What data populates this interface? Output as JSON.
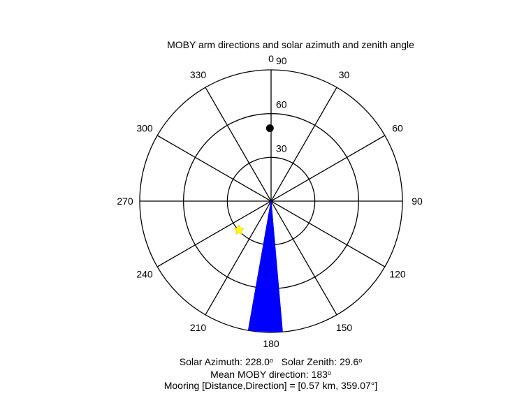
{
  "chart_data": {
    "type": "polar",
    "title": "MOBY arm directions and solar azimuth and zenith angle",
    "angular_axis": {
      "direction": "clockwise",
      "zero_location": "top",
      "tick_labels": [
        "0",
        "30",
        "60",
        "90",
        "120",
        "150",
        "180",
        "210",
        "240",
        "270",
        "300",
        "330"
      ]
    },
    "radial_axis": {
      "range": [
        0,
        90
      ],
      "ticks": [
        30,
        60,
        90
      ],
      "tick_labels": [
        "30",
        "60",
        "90"
      ]
    },
    "grid": true,
    "moby_arm_directions": {
      "color": "#0000ff",
      "min_deg": 175,
      "max_deg": 190,
      "length": 90,
      "count": 40
    },
    "sun": {
      "azimuth_deg": 228.0,
      "zenith_deg": 29.6,
      "color": "#ffff00",
      "marker": "star"
    },
    "mooring": {
      "direction_deg": 359.07,
      "radius": 50,
      "color": "#000000",
      "marker": "dot"
    }
  },
  "captions": {
    "solar_azimuth_label": "Solar Azimuth: ",
    "solar_azimuth_value": "228.0",
    "solar_zenith_label": "Solar Zenith: ",
    "solar_zenith_value": "29.6",
    "mean_direction_label": "Mean MOBY direction: ",
    "mean_direction_value": "183",
    "degree_symbol": "o",
    "mooring_text": "Mooring [Distance,Direction] = [0.57 km, 359.07°]"
  }
}
